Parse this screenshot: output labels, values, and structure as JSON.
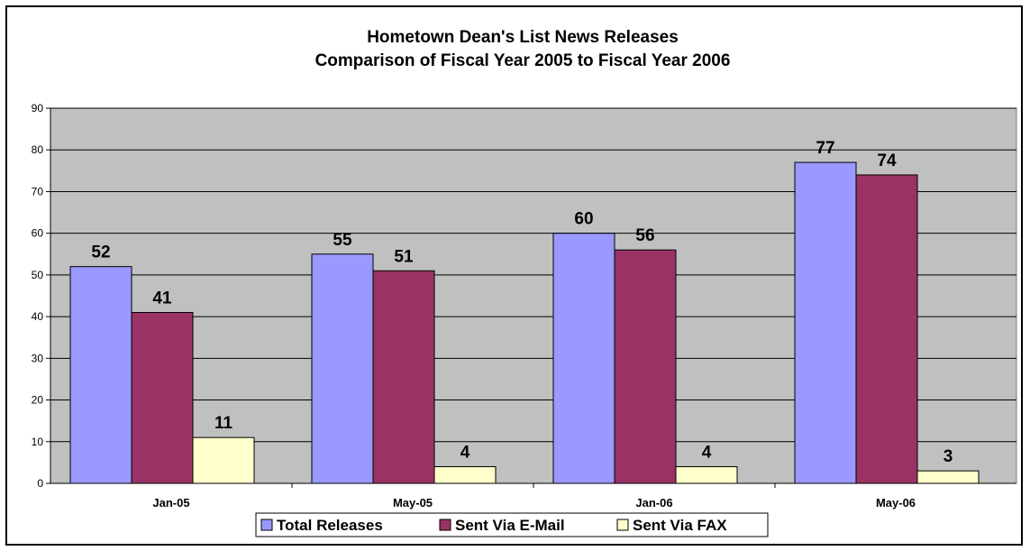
{
  "chart_data": {
    "type": "bar",
    "title": "Hometown Dean's List News Releases",
    "subtitle": "Comparison of Fiscal Year 2005 to Fiscal Year 2006",
    "categories": [
      "Jan-05",
      "May-05",
      "Jan-06",
      "May-06"
    ],
    "series": [
      {
        "name": "Total Releases",
        "values": [
          52,
          55,
          60,
          77
        ],
        "color": "#9999ff"
      },
      {
        "name": "Sent Via E-Mail",
        "values": [
          41,
          51,
          56,
          74
        ],
        "color": "#993366"
      },
      {
        "name": "Sent Via FAX",
        "values": [
          11,
          4,
          4,
          3
        ],
        "color": "#ffffcc"
      }
    ],
    "ylim": [
      0,
      90
    ],
    "yticks": [
      0,
      10,
      20,
      30,
      40,
      50,
      60,
      70,
      80,
      90
    ],
    "xlabel": "",
    "ylabel": "",
    "grid": true,
    "plot_background": "#c0c0c0",
    "legend_position": "bottom",
    "data_labels": true
  }
}
